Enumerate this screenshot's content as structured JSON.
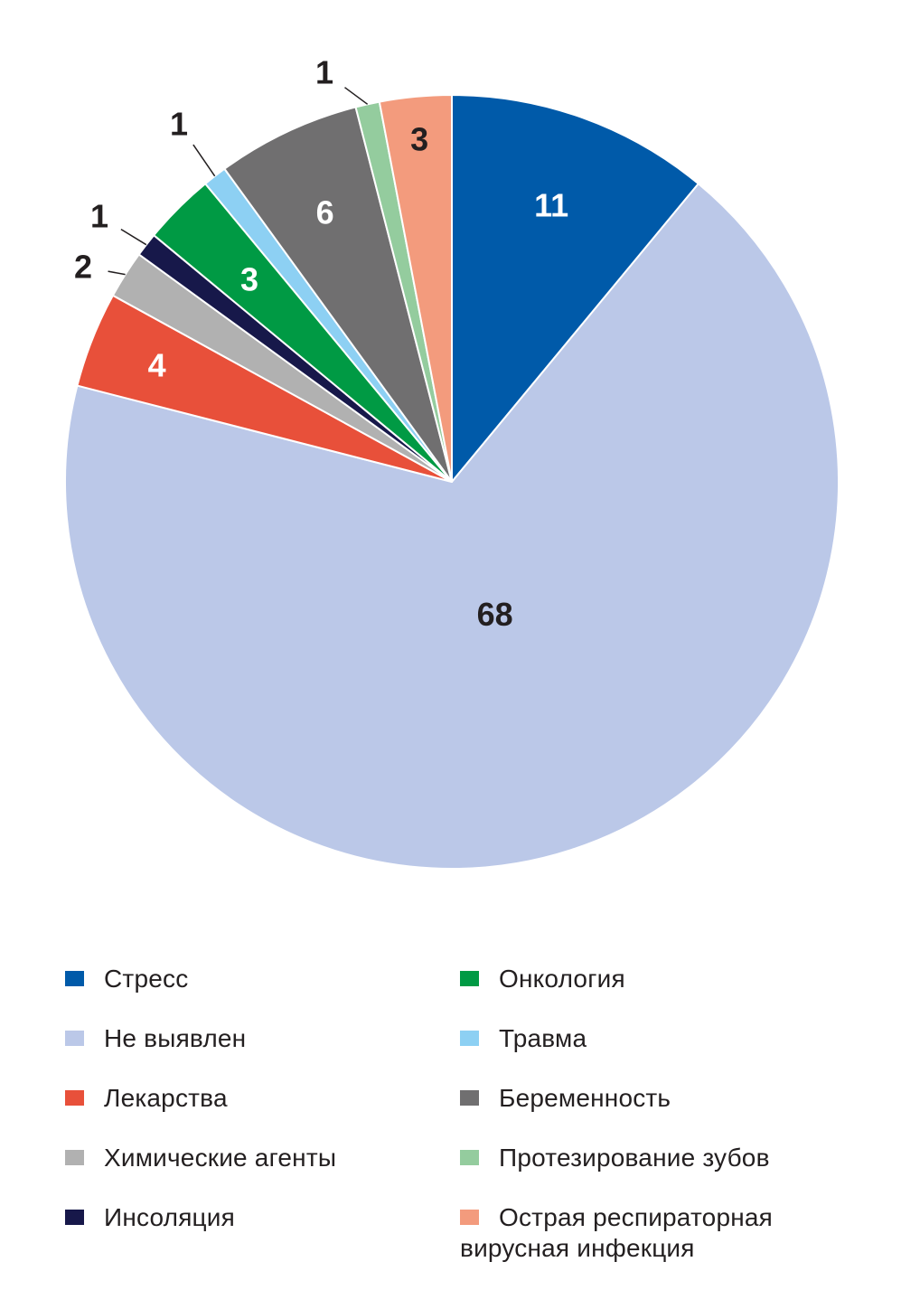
{
  "chart_data": {
    "type": "pie",
    "title": "",
    "start_angle_deg": 0,
    "direction": "clockwise",
    "slices": [
      {
        "label": "Стресс",
        "value": 11,
        "color": "#005aa9",
        "value_label": "11",
        "label_color": "#ffffff",
        "outside": false
      },
      {
        "label": "Не выявлен",
        "value": 68,
        "color": "#bbc8e8",
        "value_label": "68",
        "label_color": "#231f20",
        "outside": false
      },
      {
        "label": "Лекарства",
        "value": 4,
        "color": "#e8503a",
        "value_label": "4",
        "label_color": "#ffffff",
        "outside": false
      },
      {
        "label": "Химические агенты",
        "value": 2,
        "color": "#b1b1b1",
        "value_label": "2",
        "label_color": "#231f20",
        "outside": true
      },
      {
        "label": "Инсоляция",
        "value": 1,
        "color": "#17184a",
        "value_label": "1",
        "label_color": "#231f20",
        "outside": true
      },
      {
        "label": "Онкология",
        "value": 3,
        "color": "#009a44",
        "value_label": "3",
        "label_color": "#ffffff",
        "outside": false
      },
      {
        "label": "Травма",
        "value": 1,
        "color": "#8dd0f3",
        "value_label": "1",
        "label_color": "#231f20",
        "outside": true
      },
      {
        "label": "Беременность",
        "value": 6,
        "color": "#706f70",
        "value_label": "6",
        "label_color": "#ffffff",
        "outside": false
      },
      {
        "label": "Протезирование зубов",
        "value": 1,
        "color": "#94cc9e",
        "value_label": "1",
        "label_color": "#231f20",
        "outside": true
      },
      {
        "label": "Острая респираторная вирусная инфекция",
        "value": 3,
        "color": "#f39b7d",
        "value_label": "3",
        "label_color": "#231f20",
        "outside": false
      }
    ]
  },
  "legend": {
    "left": [
      {
        "label": "Стресс",
        "color": "#005aa9"
      },
      {
        "label": "Не выявлен",
        "color": "#bbc8e8"
      },
      {
        "label": "Лекарства",
        "color": "#e8503a"
      },
      {
        "label": "Химические агенты",
        "color": "#b1b1b1"
      },
      {
        "label": "Инсоляция",
        "color": "#17184a"
      }
    ],
    "right": [
      {
        "label": "Онкология",
        "color": "#009a44"
      },
      {
        "label": "Травма",
        "color": "#8dd0f3"
      },
      {
        "label": "Беременность",
        "color": "#706f70"
      },
      {
        "label": "Протезирование зубов",
        "color": "#94cc9e"
      },
      {
        "label": "Острая респираторная вирусная инфекция",
        "color": "#f39b7d"
      }
    ]
  }
}
